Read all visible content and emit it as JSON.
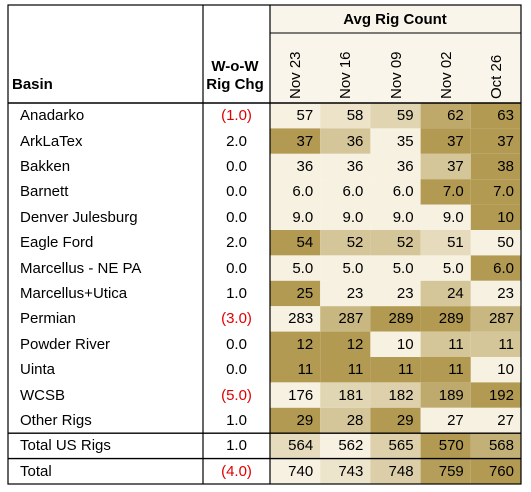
{
  "table": {
    "header": {
      "basin": "Basin",
      "change_line1": "W-o-W",
      "change_line2": "Rig Chg",
      "group": "Avg Rig Count",
      "weeks": [
        "Nov 23",
        "Nov 16",
        "Nov 09",
        "Nov 02",
        "Oct 26"
      ]
    },
    "rows": [
      {
        "basin": "Anadarko",
        "change": "(1.0)",
        "negative": true,
        "values": [
          "57",
          "58",
          "59",
          "62",
          "63"
        ]
      },
      {
        "basin": "ArkLaTex",
        "change": "2.0",
        "negative": false,
        "values": [
          "37",
          "36",
          "35",
          "37",
          "37"
        ]
      },
      {
        "basin": "Bakken",
        "change": "0.0",
        "negative": false,
        "values": [
          "36",
          "36",
          "36",
          "37",
          "38"
        ]
      },
      {
        "basin": "Barnett",
        "change": "0.0",
        "negative": false,
        "values": [
          "6.0",
          "6.0",
          "6.0",
          "7.0",
          "7.0"
        ]
      },
      {
        "basin": "Denver Julesburg",
        "change": "0.0",
        "negative": false,
        "values": [
          "9.0",
          "9.0",
          "9.0",
          "9.0",
          "10"
        ]
      },
      {
        "basin": "Eagle Ford",
        "change": "2.0",
        "negative": false,
        "values": [
          "54",
          "52",
          "52",
          "51",
          "50"
        ]
      },
      {
        "basin": "Marcellus - NE PA",
        "change": "0.0",
        "negative": false,
        "values": [
          "5.0",
          "5.0",
          "5.0",
          "5.0",
          "6.0"
        ]
      },
      {
        "basin": "Marcellus+Utica",
        "change": "1.0",
        "negative": false,
        "values": [
          "25",
          "23",
          "23",
          "24",
          "23"
        ]
      },
      {
        "basin": "Permian",
        "change": "(3.0)",
        "negative": true,
        "values": [
          "283",
          "287",
          "289",
          "289",
          "287"
        ]
      },
      {
        "basin": "Powder River",
        "change": "0.0",
        "negative": false,
        "values": [
          "12",
          "12",
          "10",
          "11",
          "11"
        ]
      },
      {
        "basin": "Uinta",
        "change": "0.0",
        "negative": false,
        "values": [
          "11",
          "11",
          "11",
          "11",
          "10"
        ]
      },
      {
        "basin": "WCSB",
        "change": "(5.0)",
        "negative": true,
        "values": [
          "176",
          "181",
          "182",
          "189",
          "192"
        ]
      },
      {
        "basin": "Other Rigs",
        "change": "1.0",
        "negative": false,
        "values": [
          "29",
          "28",
          "29",
          "27",
          "27"
        ]
      },
      {
        "basin": "Total US Rigs",
        "change": "1.0",
        "negative": false,
        "values": [
          "564",
          "562",
          "565",
          "570",
          "568"
        ]
      },
      {
        "basin": "Total",
        "change": "(4.0)",
        "negative": true,
        "values": [
          "740",
          "743",
          "748",
          "759",
          "760"
        ]
      }
    ]
  },
  "chart_data": {
    "type": "heatmap",
    "title": "Avg Rig Count",
    "columns": [
      "Nov 23",
      "Nov 16",
      "Nov 09",
      "Nov 02",
      "Oct 26"
    ],
    "rows": [
      "Anadarko",
      "ArkLaTex",
      "Bakken",
      "Barnett",
      "Denver Julesburg",
      "Eagle Ford",
      "Marcellus - NE PA",
      "Marcellus+Utica",
      "Permian",
      "Powder River",
      "Uinta",
      "WCSB",
      "Other Rigs",
      "Total US Rigs",
      "Total"
    ],
    "wow_rig_change": [
      -1.0,
      2.0,
      0.0,
      0.0,
      0.0,
      2.0,
      0.0,
      1.0,
      -3.0,
      0.0,
      0.0,
      -5.0,
      1.0,
      1.0,
      -4.0
    ],
    "values": [
      [
        57,
        58,
        59,
        62,
        63
      ],
      [
        37,
        36,
        35,
        37,
        37
      ],
      [
        36,
        36,
        36,
        37,
        38
      ],
      [
        6.0,
        6.0,
        6.0,
        7.0,
        7.0
      ],
      [
        9.0,
        9.0,
        9.0,
        9.0,
        10
      ],
      [
        54,
        52,
        52,
        51,
        50
      ],
      [
        5.0,
        5.0,
        5.0,
        5.0,
        6.0
      ],
      [
        25,
        23,
        23,
        24,
        23
      ],
      [
        283,
        287,
        289,
        289,
        287
      ],
      [
        12,
        12,
        10,
        11,
        11
      ],
      [
        11,
        11,
        11,
        11,
        10
      ],
      [
        176,
        181,
        182,
        189,
        192
      ],
      [
        29,
        28,
        29,
        27,
        27
      ],
      [
        564,
        562,
        565,
        570,
        568
      ],
      [
        740,
        743,
        748,
        759,
        760
      ]
    ],
    "colors": {
      "low": "#f7f1e1",
      "high": "#b29a52",
      "negative_text": "#e00000"
    }
  }
}
